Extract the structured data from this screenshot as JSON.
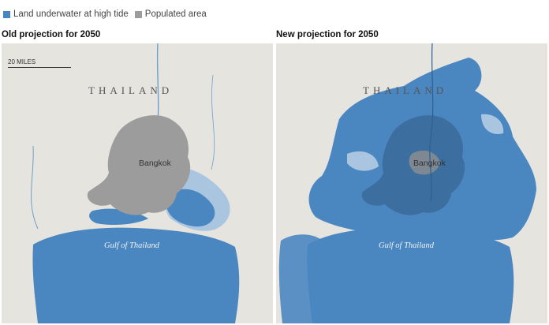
{
  "legend": {
    "items": [
      {
        "label": "Land underwater at high tide",
        "color": "#4a86c0"
      },
      {
        "label": "Populated area",
        "color": "#9c9c9c"
      }
    ]
  },
  "panels": [
    {
      "title": "Old projection for 2050",
      "country_label": "THAILAND",
      "city_label": "Bangkok",
      "sea_label": "Gulf of Thailand",
      "scale_label": "20 MILES"
    },
    {
      "title": "New projection for 2050",
      "country_label": "THAILAND",
      "city_label": "Bangkok",
      "sea_label": "Gulf of Thailand"
    }
  ],
  "colors": {
    "land": "#e6e4df",
    "water": "#4a86c0",
    "flood": "#4a86c0",
    "flood_light": "#a9c5df",
    "populated": "#9c9c9c",
    "river": "#6f9fcb"
  }
}
